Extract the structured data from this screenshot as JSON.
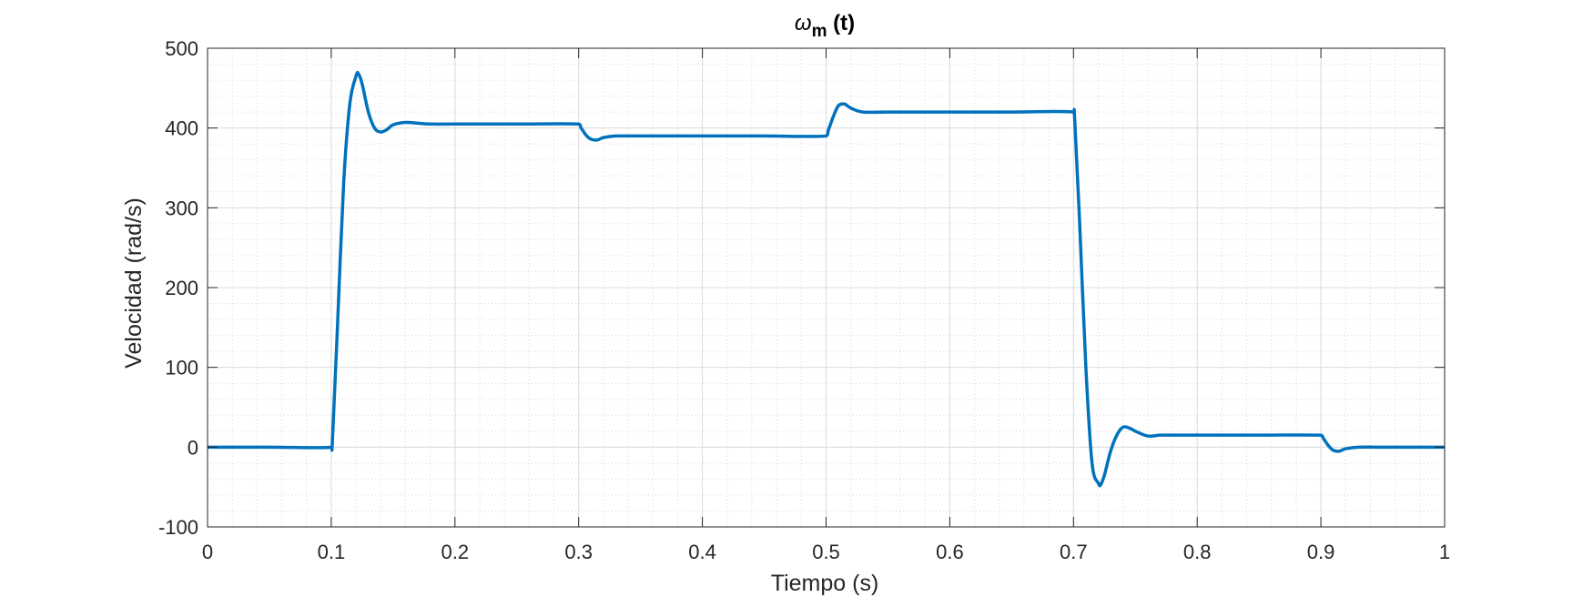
{
  "chart_data": {
    "type": "line",
    "title": "ω",
    "title_subscript": "m",
    "title_suffix": " (t)",
    "xlabel": "Tiempo (s)",
    "ylabel": "Velocidad (rad/s)",
    "xlim": [
      0,
      1
    ],
    "ylim": [
      -100,
      500
    ],
    "xticks": [
      0,
      0.1,
      0.2,
      0.3,
      0.4,
      0.5,
      0.6,
      0.7,
      0.8,
      0.9,
      1
    ],
    "xtick_labels": [
      "0",
      "0.1",
      "0.2",
      "0.3",
      "0.4",
      "0.5",
      "0.6",
      "0.7",
      "0.8",
      "0.9",
      "1"
    ],
    "yticks": [
      -100,
      0,
      100,
      200,
      300,
      400,
      500
    ],
    "ytick_labels": [
      "-100",
      "0",
      "100",
      "200",
      "300",
      "400",
      "500"
    ],
    "grid": true,
    "minor_grid": true,
    "series": [
      {
        "color": "#0072BD",
        "x": [
          0,
          0.05,
          0.1,
          0.101,
          0.105,
          0.11,
          0.115,
          0.12,
          0.122,
          0.125,
          0.13,
          0.135,
          0.14,
          0.145,
          0.15,
          0.16,
          0.17,
          0.18,
          0.2,
          0.25,
          0.3,
          0.302,
          0.306,
          0.31,
          0.315,
          0.32,
          0.33,
          0.35,
          0.4,
          0.45,
          0.5,
          0.502,
          0.506,
          0.51,
          0.515,
          0.52,
          0.53,
          0.55,
          0.6,
          0.65,
          0.7,
          0.701,
          0.705,
          0.71,
          0.715,
          0.72,
          0.722,
          0.725,
          0.73,
          0.735,
          0.74,
          0.745,
          0.75,
          0.76,
          0.77,
          0.78,
          0.8,
          0.85,
          0.9,
          0.902,
          0.906,
          0.91,
          0.915,
          0.92,
          0.93,
          0.95,
          1.0
        ],
        "y": [
          0,
          0,
          0,
          10,
          150,
          330,
          430,
          465,
          468,
          455,
          420,
          400,
          395,
          398,
          404,
          407,
          406,
          405,
          405,
          405,
          405,
          400,
          391,
          386,
          385,
          388,
          390,
          390,
          390,
          390,
          390,
          398,
          415,
          428,
          430,
          425,
          420,
          420,
          420,
          420,
          420,
          410,
          280,
          100,
          -20,
          -45,
          -47,
          -35,
          -5,
          15,
          25,
          24,
          20,
          14,
          15,
          15,
          15,
          15,
          15,
          11,
          2,
          -4,
          -5,
          -2,
          0,
          0,
          0
        ]
      }
    ]
  }
}
